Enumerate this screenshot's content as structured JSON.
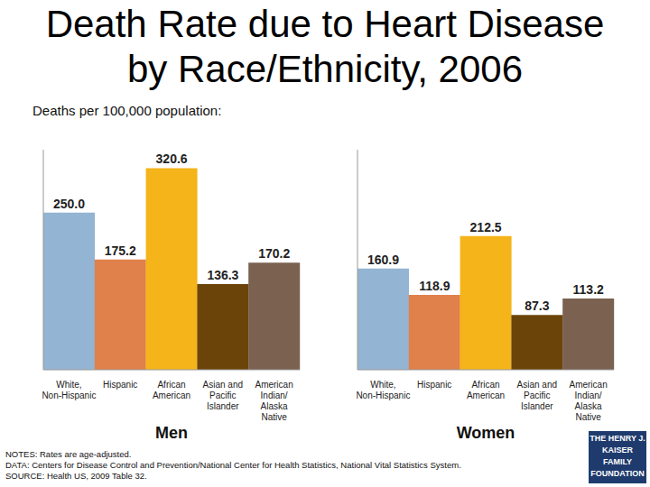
{
  "title": "Death Rate due to Heart Disease\nby Race/Ethnicity, 2006",
  "subtitle": "Deaths per 100,000 population:",
  "notes": [
    "NOTES: Rates are age-adjusted.",
    "DATA: Centers for Disease Control and Prevention/National Center for Health Statistics, National Vital Statistics System.",
    "SOURCE: Health US, 2009 Table 32."
  ],
  "logo": "THE HENRY J.\nKAISER\nFAMILY\nFOUNDATION",
  "chart_data": [
    {
      "type": "bar",
      "title": "Men",
      "categories": [
        "White, Non-Hispanic",
        "Hispanic",
        "African American",
        "Asian and Pacific Islander",
        "American Indian/ Alaska Native"
      ],
      "values": [
        250.0,
        175.2,
        320.6,
        136.3,
        170.2
      ],
      "value_labels": [
        "250.0",
        "175.2",
        "320.6",
        "136.3",
        "170.2"
      ],
      "colors": [
        "#93b4d2",
        "#e0804a",
        "#f4b41a",
        "#6b4409",
        "#7a6150"
      ],
      "ylim": [
        0,
        350
      ],
      "data_labels": true,
      "tick_labels": "x"
    },
    {
      "type": "bar",
      "title": "Women",
      "categories": [
        "White, Non-Hispanic",
        "Hispanic",
        "African American",
        "Asian and Pacific Islander",
        "American Indian/ Alaska Native"
      ],
      "values": [
        160.9,
        118.9,
        212.5,
        87.3,
        113.2
      ],
      "colors": [
        "#93b4d2",
        "#e0804a",
        "#f4b41a",
        "#6b4409",
        "#7a6150"
      ],
      "ylim": [
        0,
        350
      ],
      "data_labels": true,
      "tick_labels": "x"
    }
  ]
}
